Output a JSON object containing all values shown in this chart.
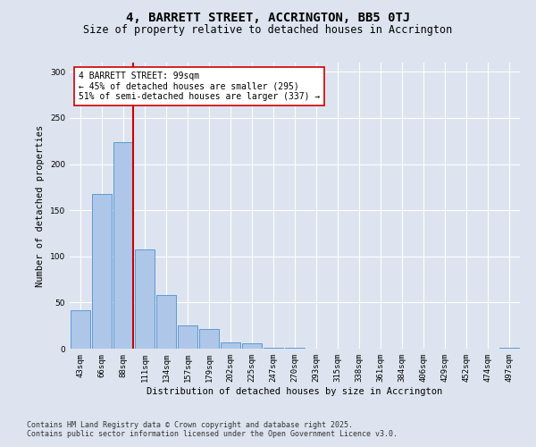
{
  "title": "4, BARRETT STREET, ACCRINGTON, BB5 0TJ",
  "subtitle": "Size of property relative to detached houses in Accrington",
  "xlabel": "Distribution of detached houses by size in Accrington",
  "ylabel": "Number of detached properties",
  "categories": [
    "43sqm",
    "66sqm",
    "88sqm",
    "111sqm",
    "134sqm",
    "157sqm",
    "179sqm",
    "202sqm",
    "225sqm",
    "247sqm",
    "270sqm",
    "293sqm",
    "315sqm",
    "338sqm",
    "361sqm",
    "384sqm",
    "406sqm",
    "429sqm",
    "452sqm",
    "474sqm",
    "497sqm"
  ],
  "values": [
    42,
    168,
    224,
    108,
    58,
    25,
    21,
    7,
    6,
    1,
    1,
    0,
    0,
    0,
    0,
    0,
    0,
    0,
    0,
    0,
    1
  ],
  "bar_color": "#aec6e8",
  "bar_edge_color": "#5b9bd5",
  "vline_color": "#cc0000",
  "vline_x": 2.45,
  "annotation_text": "4 BARRETT STREET: 99sqm\n← 45% of detached houses are smaller (295)\n51% of semi-detached houses are larger (337) →",
  "annotation_box_color": "#ffffff",
  "annotation_box_edge_color": "#cc0000",
  "ylim": [
    0,
    310
  ],
  "yticks": [
    0,
    50,
    100,
    150,
    200,
    250,
    300
  ],
  "background_color": "#dde4ef",
  "plot_bg_color": "#dde4ef",
  "footer_line1": "Contains HM Land Registry data © Crown copyright and database right 2025.",
  "footer_line2": "Contains public sector information licensed under the Open Government Licence v3.0.",
  "title_fontsize": 10,
  "subtitle_fontsize": 8.5,
  "axis_label_fontsize": 7.5,
  "tick_fontsize": 6.5,
  "annotation_fontsize": 7,
  "footer_fontsize": 6
}
